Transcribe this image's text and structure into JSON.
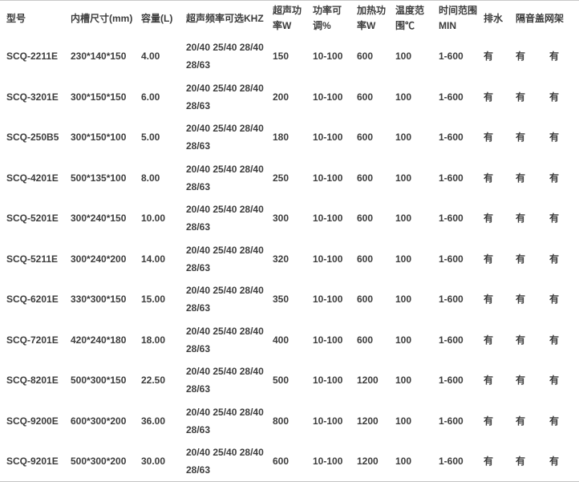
{
  "table": {
    "columns": [
      {
        "id": "model",
        "line1": "型号"
      },
      {
        "id": "tank-size",
        "line1": "内槽尺寸(mm)"
      },
      {
        "id": "capacity",
        "line1": "容量(L)"
      },
      {
        "id": "frequency",
        "line1": "超声频率可选KHZ"
      },
      {
        "id": "us-power",
        "line1": "超声功",
        "line2": "率W"
      },
      {
        "id": "power-adj",
        "line1": "功率可",
        "line2": "调%"
      },
      {
        "id": "heat-power",
        "line1": "加热功",
        "line2": "率W"
      },
      {
        "id": "temp-range",
        "line1": "温度范",
        "line2": "围℃"
      },
      {
        "id": "time-range",
        "line1": "时间范围",
        "line2": "MIN"
      },
      {
        "id": "drain",
        "line1": "排水"
      },
      {
        "id": "cover-rack",
        "line1": "隔音盖网架",
        "colspan": 2
      }
    ],
    "rows": [
      {
        "model": "SCQ-2211E",
        "tank_size": "230*140*150",
        "capacity": "4.00",
        "freq1": "20/40 25/40 28/40",
        "freq2": "28/63",
        "us_power": "150",
        "power_adj": "10-100",
        "heat_power": "600",
        "temp_range": "100",
        "time_range": "1-600",
        "drain": "有",
        "cover": "有",
        "rack": "有"
      },
      {
        "model": "SCQ-3201E",
        "tank_size": "300*150*150",
        "capacity": "6.00",
        "freq1": "20/40 25/40 28/40",
        "freq2": "28/63",
        "us_power": "200",
        "power_adj": "10-100",
        "heat_power": "600",
        "temp_range": "100",
        "time_range": "1-600",
        "drain": "有",
        "cover": "有",
        "rack": "有"
      },
      {
        "model": "SCQ-250B5",
        "tank_size": "300*150*100",
        "capacity": "5.00",
        "freq1": "20/40 25/40 28/40",
        "freq2": "28/63",
        "us_power": "180",
        "power_adj": "10-100",
        "heat_power": "600",
        "temp_range": "100",
        "time_range": "1-600",
        "drain": "有",
        "cover": "有",
        "rack": "有"
      },
      {
        "model": "SCQ-4201E",
        "tank_size": "500*135*100",
        "capacity": "8.00",
        "freq1": "20/40 25/40 28/40",
        "freq2": "28/63",
        "us_power": "250",
        "power_adj": "10-100",
        "heat_power": "600",
        "temp_range": "100",
        "time_range": "1-600",
        "drain": "有",
        "cover": "有",
        "rack": "有"
      },
      {
        "model": "SCQ-5201E",
        "tank_size": "300*240*150",
        "capacity": "10.00",
        "freq1": "20/40 25/40 28/40",
        "freq2": "28/63",
        "us_power": "300",
        "power_adj": "10-100",
        "heat_power": "600",
        "temp_range": "100",
        "time_range": "1-600",
        "drain": "有",
        "cover": "有",
        "rack": "有"
      },
      {
        "model": "SCQ-5211E",
        "tank_size": "300*240*200",
        "capacity": "14.00",
        "freq1": "20/40 25/40 28/40",
        "freq2": "28/63",
        "us_power": "320",
        "power_adj": "10-100",
        "heat_power": "600",
        "temp_range": "100",
        "time_range": "1-600",
        "drain": "有",
        "cover": "有",
        "rack": "有"
      },
      {
        "model": "SCQ-6201E",
        "tank_size": "330*300*150",
        "capacity": "15.00",
        "freq1": "20/40 25/40 28/40",
        "freq2": "28/63",
        "us_power": "350",
        "power_adj": "10-100",
        "heat_power": "600",
        "temp_range": "100",
        "time_range": "1-600",
        "drain": "有",
        "cover": "有",
        "rack": "有"
      },
      {
        "model": "SCQ-7201E",
        "tank_size": "420*240*180",
        "capacity": "18.00",
        "freq1": "20/40 25/40 28/40",
        "freq2": "28/63",
        "us_power": "400",
        "power_adj": "10-100",
        "heat_power": "600",
        "temp_range": "100",
        "time_range": "1-600",
        "drain": "有",
        "cover": "有",
        "rack": "有"
      },
      {
        "model": "SCQ-8201E",
        "tank_size": "500*300*150",
        "capacity": "22.50",
        "freq1": "20/40 25/40 28/40",
        "freq2": "28/63",
        "us_power": "500",
        "power_adj": "10-100",
        "heat_power": "1200",
        "temp_range": "100",
        "time_range": "1-600",
        "drain": "有",
        "cover": "有",
        "rack": "有"
      },
      {
        "model": "SCQ-9200E",
        "tank_size": "600*300*200",
        "capacity": "36.00",
        "freq1": "20/40 25/40 28/40",
        "freq2": "28/63",
        "us_power": "800",
        "power_adj": "10-100",
        "heat_power": "1200",
        "temp_range": "100",
        "time_range": "1-600",
        "drain": "有",
        "cover": "有",
        "rack": "有"
      },
      {
        "model": "SCQ-9201E",
        "tank_size": "500*300*200",
        "capacity": "30.00",
        "freq1": "20/40 25/40 28/40",
        "freq2": "28/63",
        "us_power": "600",
        "power_adj": "10-100",
        "heat_power": "1200",
        "temp_range": "100",
        "time_range": "1-600",
        "drain": "有",
        "cover": "有",
        "rack": "有"
      }
    ]
  },
  "colors": {
    "text": "#3c3c3c",
    "border_top": "#c9c9c9",
    "border_bottom": "#c5c5c5",
    "background": "#ffffff"
  }
}
